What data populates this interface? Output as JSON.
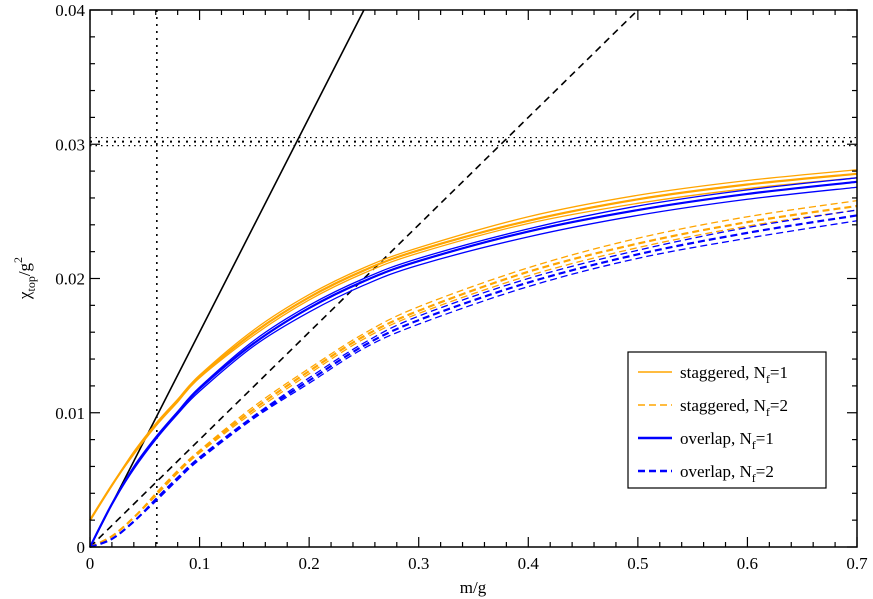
{
  "chart_data": {
    "type": "line",
    "xlabel": "m/g",
    "ylabel": {
      "base": "χ",
      "sub": "top",
      "mid": "/g",
      "sup": "2"
    },
    "xlim": [
      0,
      0.7
    ],
    "ylim": [
      0,
      0.04
    ],
    "xticks": [
      "0",
      "0.1",
      "0.2",
      "0.3",
      "0.4",
      "0.5",
      "0.6",
      "0.7"
    ],
    "yticks": [
      "0",
      "0.01",
      "0.02",
      "0.03",
      "0.04"
    ],
    "grid": false,
    "legend_position": "lower-right",
    "colors": {
      "staggered": "#ffa500",
      "overlap": "#0000ff",
      "reference": "#000000"
    },
    "x": [
      0,
      0.02,
      0.04,
      0.06,
      0.08,
      0.1,
      0.15,
      0.2,
      0.25,
      0.3,
      0.4,
      0.5,
      0.6,
      0.7
    ],
    "series": [
      {
        "name": "staggered, N_f=1",
        "legend": {
          "text": "staggered, N",
          "sub": "f",
          "tail": "=1"
        },
        "color": "#ffa500",
        "dash": "solid",
        "lines": [
          [
            0.002,
            0.0046,
            0.0069,
            0.009,
            0.0108,
            0.0126,
            0.0158,
            0.0184,
            0.0204,
            0.0219,
            0.0241,
            0.0256,
            0.0267,
            0.0275
          ],
          [
            0.002,
            0.0046,
            0.007,
            0.0091,
            0.0109,
            0.0127,
            0.016,
            0.0186,
            0.0206,
            0.0221,
            0.0243,
            0.0259,
            0.027,
            0.0278
          ],
          [
            0.002,
            0.0046,
            0.0071,
            0.0092,
            0.011,
            0.0128,
            0.0162,
            0.0188,
            0.0208,
            0.0223,
            0.0246,
            0.0262,
            0.0273,
            0.0281
          ]
        ]
      },
      {
        "name": "staggered, N_f=2",
        "legend": {
          "text": "staggered, N",
          "sub": "f",
          "tail": "=2"
        },
        "color": "#ffa500",
        "dash": "dashed",
        "lines": [
          [
            0,
            0.0008,
            0.0022,
            0.0038,
            0.0055,
            0.007,
            0.0101,
            0.0129,
            0.0155,
            0.0174,
            0.0202,
            0.0223,
            0.0239,
            0.0251
          ],
          [
            0,
            0.0008,
            0.0022,
            0.0039,
            0.0056,
            0.0071,
            0.0103,
            0.0131,
            0.0157,
            0.0176,
            0.0205,
            0.0226,
            0.0242,
            0.0254
          ],
          [
            0,
            0.0008,
            0.0022,
            0.004,
            0.0057,
            0.0072,
            0.0105,
            0.0133,
            0.0159,
            0.0179,
            0.0208,
            0.023,
            0.0246,
            0.0258
          ]
        ]
      },
      {
        "name": "overlap, N_f=1",
        "legend": {
          "text": "overlap, N",
          "sub": "f",
          "tail": "=1"
        },
        "color": "#0000ff",
        "dash": "solid",
        "lines": [
          [
            0,
            0.0032,
            0.0058,
            0.008,
            0.0099,
            0.0116,
            0.015,
            0.0175,
            0.0195,
            0.021,
            0.0231,
            0.0247,
            0.0259,
            0.0268
          ],
          [
            0,
            0.0032,
            0.0059,
            0.0081,
            0.01,
            0.0118,
            0.0152,
            0.0178,
            0.0198,
            0.0213,
            0.0235,
            0.0251,
            0.0263,
            0.0272
          ],
          [
            0,
            0.0032,
            0.006,
            0.0082,
            0.0101,
            0.0119,
            0.0154,
            0.018,
            0.02,
            0.0215,
            0.0237,
            0.0254,
            0.0266,
            0.0275
          ]
        ]
      },
      {
        "name": "overlap, N_f=2",
        "legend": {
          "text": "overlap, N",
          "sub": "f",
          "tail": "=2"
        },
        "color": "#0000ff",
        "dash": "dashed",
        "lines": [
          [
            0,
            0.0006,
            0.0019,
            0.0034,
            0.005,
            0.0065,
            0.0096,
            0.0122,
            0.0148,
            0.0166,
            0.0194,
            0.0215,
            0.023,
            0.0243
          ],
          [
            0,
            0.0006,
            0.0019,
            0.0035,
            0.0051,
            0.0066,
            0.0097,
            0.0124,
            0.015,
            0.0169,
            0.0197,
            0.0218,
            0.0234,
            0.0247
          ],
          [
            0,
            0.0006,
            0.0019,
            0.0036,
            0.0052,
            0.0067,
            0.0098,
            0.0126,
            0.0152,
            0.0172,
            0.02,
            0.0221,
            0.0238,
            0.0251
          ]
        ]
      }
    ],
    "reference_lines": {
      "slopes": [
        {
          "slope": 0.16,
          "dash": "solid"
        },
        {
          "slope": 0.08,
          "dash": "dashed"
        }
      ],
      "vertical_dotted_x": 0.061,
      "horizontal_dotted_y": [
        0.0299,
        0.0302,
        0.0305
      ]
    }
  }
}
